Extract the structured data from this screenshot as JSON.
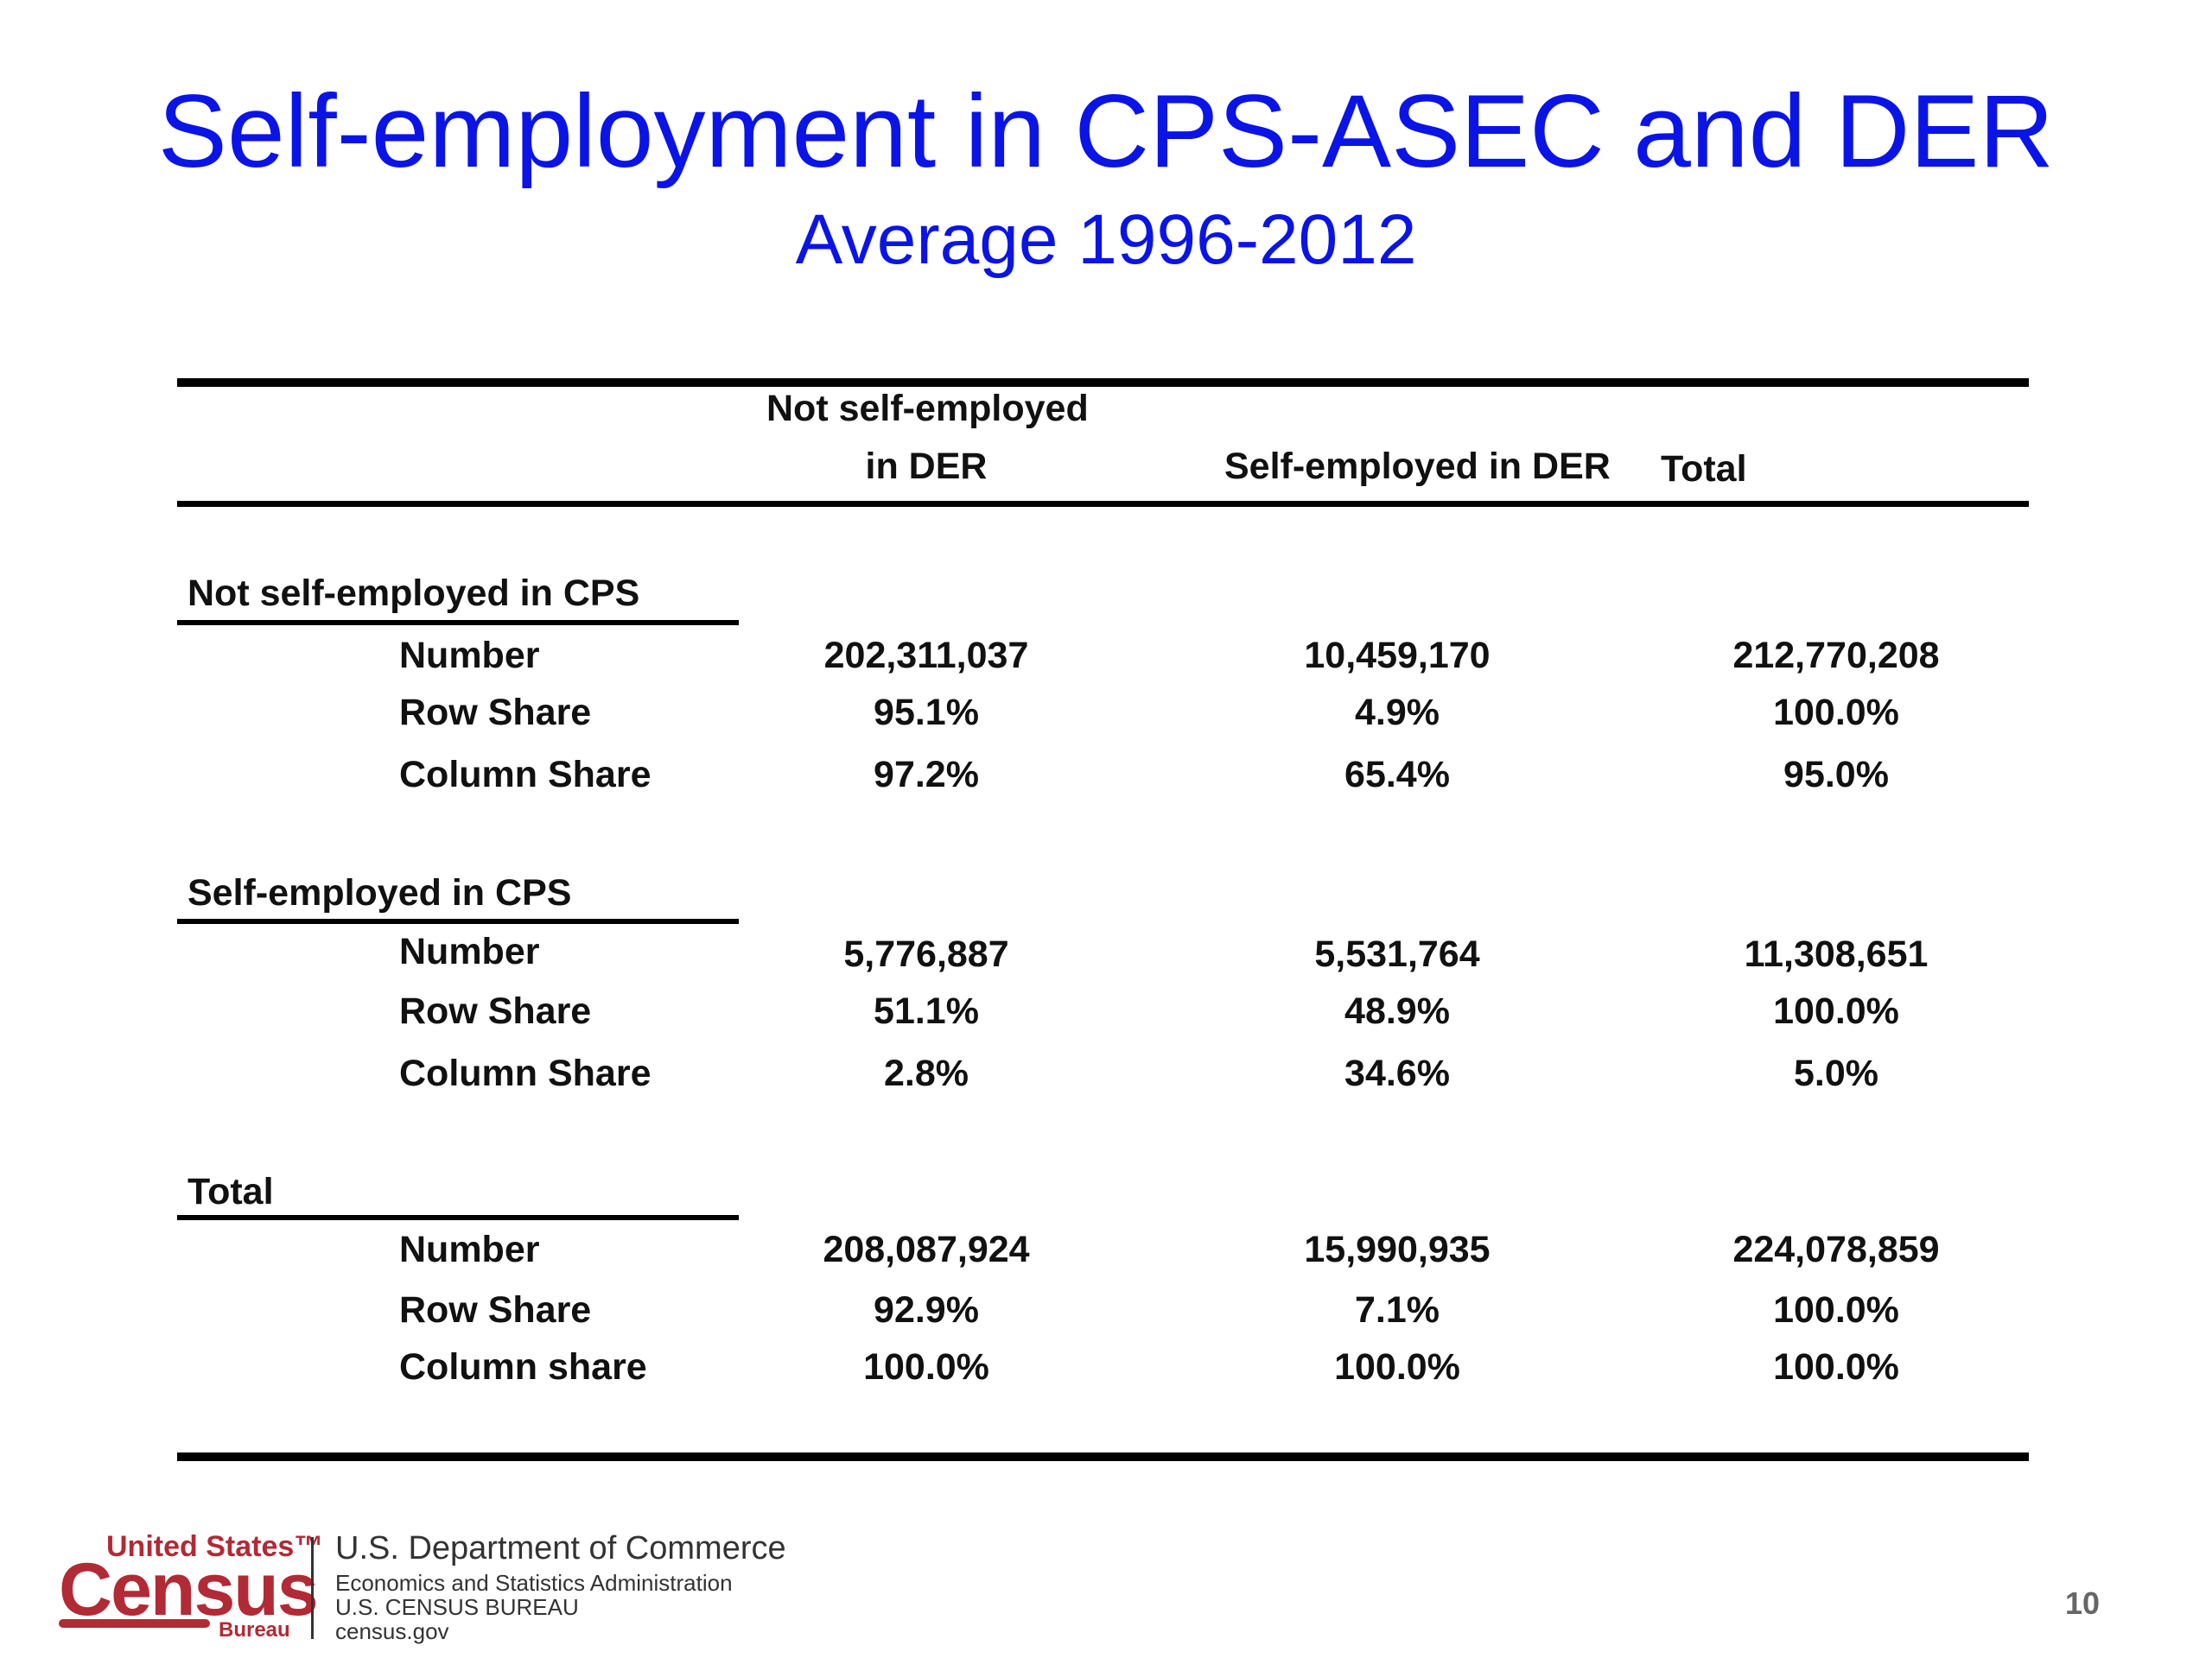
{
  "title": "Self-employment in CPS-ASEC and DER",
  "subtitle": "Average 1996-2012",
  "table": {
    "headers": {
      "col1_line1": "Not self-employed",
      "col1_line2": "in DER",
      "col2": "Self-employed in DER",
      "col3": "Total"
    },
    "groups": [
      {
        "label": "Not self-employed in CPS",
        "rows": [
          {
            "label": "Number",
            "c1": "202,311,037",
            "c2": "10,459,170",
            "c3": "212,770,208"
          },
          {
            "label": "Row Share",
            "c1": "95.1%",
            "c2": "4.9%",
            "c3": "100.0%"
          },
          {
            "label": "Column Share",
            "c1": "97.2%",
            "c2": "65.4%",
            "c3": "95.0%"
          }
        ]
      },
      {
        "label": "Self-employed in CPS",
        "rows": [
          {
            "label": "Number",
            "c1": "5,776,887",
            "c2": "5,531,764",
            "c3": "11,308,651"
          },
          {
            "label": "Row Share",
            "c1": "51.1%",
            "c2": "48.9%",
            "c3": "100.0%"
          },
          {
            "label": "Column Share",
            "c1": "2.8%",
            "c2": "34.6%",
            "c3": "5.0%"
          }
        ]
      },
      {
        "label": "Total",
        "rows": [
          {
            "label": "Number",
            "c1": "208,087,924",
            "c2": "15,990,935",
            "c3": "224,078,859"
          },
          {
            "label": "Row Share",
            "c1": "92.9%",
            "c2": "7.1%",
            "c3": "100.0%"
          },
          {
            "label": "Column share",
            "c1": "100.0%",
            "c2": "100.0%",
            "c3": "100.0%"
          }
        ]
      }
    ]
  },
  "footer": {
    "logo_top": "United States™",
    "logo_main": "Census",
    "logo_bottom": "Bureau",
    "dept": "U.S. Department of Commerce",
    "admin": "Economics and Statistics Administration",
    "bureau": "U.S. CENSUS BUREAU",
    "site": "census.gov"
  },
  "page_number": "10"
}
